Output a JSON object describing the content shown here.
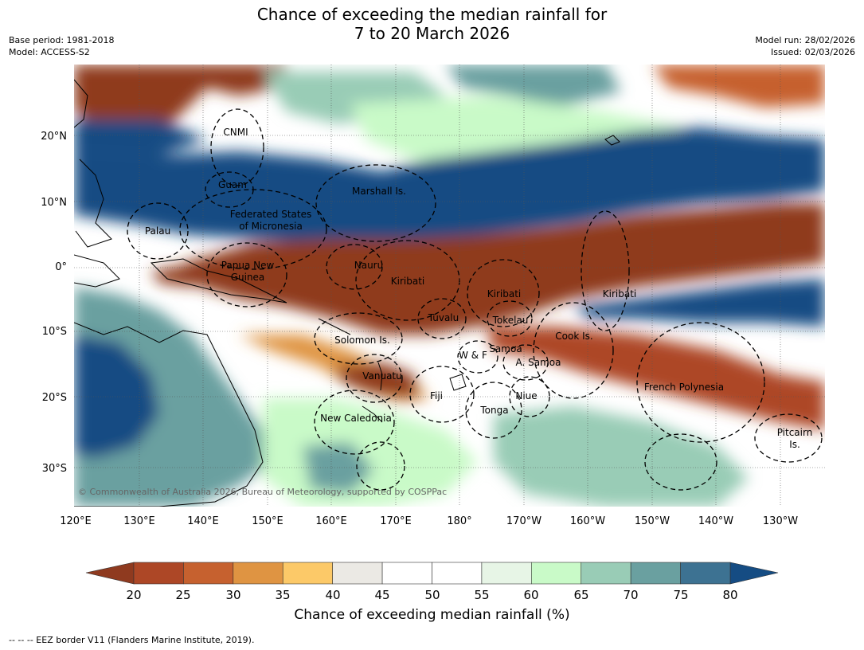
{
  "title_line1": "Chance of exceeding the median rainfall for",
  "title_line2": "7 to 20 March 2026",
  "meta_left": [
    "Base period: 1981-2018",
    "Model: ACCESS-S2"
  ],
  "meta_right": [
    "Model run: 28/02/2026",
    "Issued: 02/03/2026"
  ],
  "lon_ticks": [
    "120°E",
    "130°E",
    "140°E",
    "150°E",
    "160°E",
    "170°E",
    "180°",
    "170°W",
    "160°W",
    "150°W",
    "140°W",
    "130°W"
  ],
  "lat_ticks": [
    "20°N",
    "10°N",
    "0°",
    "10°S",
    "20°S",
    "30°S"
  ],
  "regions": [
    {
      "name": "CNMI"
    },
    {
      "name": "Guam"
    },
    {
      "name": "Marshall Is."
    },
    {
      "name": "Federated States"
    },
    {
      "name": "of Micronesia"
    },
    {
      "name": "Palau"
    },
    {
      "name": "Papua New"
    },
    {
      "name": "Guinea"
    },
    {
      "name": "Nauru"
    },
    {
      "name": "Kiribati"
    },
    {
      "name": "Kiribati"
    },
    {
      "name": "Kiribati"
    },
    {
      "name": "Tuvalu"
    },
    {
      "name": "Tokelau"
    },
    {
      "name": "Solomon Is."
    },
    {
      "name": "Cook Is."
    },
    {
      "name": "Samoa"
    },
    {
      "name": "W & F"
    },
    {
      "name": "A. Samoa"
    },
    {
      "name": "Vanuatu"
    },
    {
      "name": "Fiji"
    },
    {
      "name": "Niue"
    },
    {
      "name": "French Polynesia"
    },
    {
      "name": "Tonga"
    },
    {
      "name": "New Caledonia"
    },
    {
      "name": "Pitcairn"
    },
    {
      "name": "Is."
    }
  ],
  "copyright": "© Commonwealth of Australia 2026, Bureau of Meteorology, supported by COSPPac",
  "colorbar": {
    "ticks": [
      "20",
      "25",
      "30",
      "35",
      "40",
      "45",
      "50",
      "55",
      "60",
      "65",
      "70",
      "75",
      "80"
    ],
    "title": "Chance of exceeding median rainfall (%)",
    "colors": [
      "#8f3a1f",
      "#ad4726",
      "#c6612f",
      "#df9442",
      "#fcc968",
      "#ebe9e4",
      "#ffffff",
      "#ffffff",
      "#e7f5e6",
      "#c9fac8",
      "#99ccb6",
      "#6aa0a0",
      "#3d7292",
      "#154c83"
    ]
  },
  "footnote": "--  --  -- EEZ border V11 (Flanders Marine Institute, 2019).",
  "chart_data": {
    "type": "heatmap",
    "title": "Chance of exceeding the median rainfall for 7 to 20 March 2026",
    "x_range": [
      "120°E",
      "125°W"
    ],
    "y_range": [
      "35°S",
      "30°N"
    ],
    "variable": "Chance of exceeding median rainfall (%)",
    "scale_min": 20,
    "scale_max": 80
  }
}
